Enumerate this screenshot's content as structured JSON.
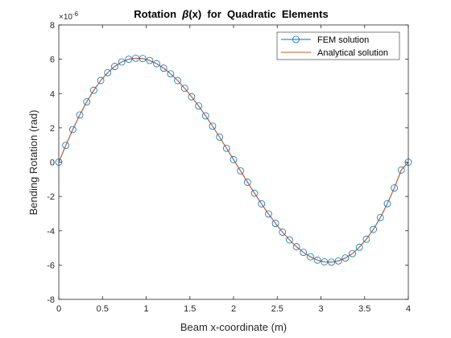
{
  "chart_data": {
    "type": "line",
    "title_parts": [
      "Rotation  ",
      "β",
      "(x)  for  Quadratic  Elements"
    ],
    "xlabel": "Beam x-coordinate (m)",
    "ylabel": "Bending Rotation (rad)",
    "xlim": [
      0,
      4
    ],
    "ylim": [
      -8,
      8
    ],
    "y_multiplier_label": "×10",
    "y_multiplier_exponent": "-6",
    "x_ticks": [
      0,
      0.5,
      1,
      1.5,
      2,
      2.5,
      3,
      3.5,
      4
    ],
    "x_tick_labels": [
      "0",
      "0.5",
      "1",
      "1.5",
      "2",
      "2.5",
      "3",
      "3.5",
      "4"
    ],
    "y_ticks": [
      -8,
      -6,
      -4,
      -2,
      0,
      2,
      4,
      6,
      8
    ],
    "y_tick_labels": [
      "-8",
      "-6",
      "-4",
      "-2",
      "0",
      "2",
      "4",
      "6",
      "8"
    ],
    "grid": false,
    "legend_position": "top-right",
    "series": [
      {
        "name": "FEM solution",
        "style": "markers-and-line",
        "color": "#0072BD",
        "x": [
          0.0,
          0.08,
          0.16,
          0.24,
          0.32,
          0.4,
          0.48,
          0.56,
          0.64,
          0.72,
          0.8,
          0.88,
          0.96,
          1.04,
          1.12,
          1.2,
          1.28,
          1.36,
          1.44,
          1.52,
          1.6,
          1.68,
          1.76,
          1.84,
          1.92,
          2.0,
          2.08,
          2.16,
          2.24,
          2.32,
          2.4,
          2.48,
          2.56,
          2.64,
          2.72,
          2.8,
          2.88,
          2.96,
          3.04,
          3.12,
          3.2,
          3.28,
          3.36,
          3.44,
          3.52,
          3.6,
          3.68,
          3.76,
          3.84,
          3.92,
          4.0
        ],
        "y": [
          0.0,
          0.98,
          1.9,
          2.75,
          3.52,
          4.19,
          4.76,
          5.22,
          5.58,
          5.84,
          6.0,
          6.06,
          6.04,
          5.93,
          5.74,
          5.48,
          5.15,
          4.76,
          4.31,
          3.81,
          3.28,
          2.7,
          2.1,
          1.46,
          0.81,
          0.15,
          -0.51,
          -1.17,
          -1.81,
          -2.43,
          -3.02,
          -3.57,
          -4.08,
          -4.53,
          -4.93,
          -5.26,
          -5.52,
          -5.71,
          -5.81,
          -5.83,
          -5.76,
          -5.59,
          -5.33,
          -4.96,
          -4.49,
          -3.92,
          -3.23,
          -2.42,
          -1.5,
          -0.46,
          0.0
        ]
      },
      {
        "name": "Analytical solution",
        "style": "line",
        "color": "#D95319",
        "x": [
          0.0,
          0.08,
          0.16,
          0.24,
          0.32,
          0.4,
          0.48,
          0.56,
          0.64,
          0.72,
          0.8,
          0.88,
          0.96,
          1.04,
          1.12,
          1.2,
          1.28,
          1.36,
          1.44,
          1.52,
          1.6,
          1.68,
          1.76,
          1.84,
          1.92,
          2.0,
          2.08,
          2.16,
          2.24,
          2.32,
          2.4,
          2.48,
          2.56,
          2.64,
          2.72,
          2.8,
          2.88,
          2.96,
          3.04,
          3.12,
          3.2,
          3.28,
          3.36,
          3.44,
          3.52,
          3.6,
          3.68,
          3.76,
          3.84,
          3.92,
          4.0
        ],
        "y": [
          0.0,
          0.98,
          1.9,
          2.75,
          3.52,
          4.19,
          4.76,
          5.22,
          5.58,
          5.84,
          6.0,
          6.06,
          6.04,
          5.93,
          5.74,
          5.48,
          5.15,
          4.76,
          4.31,
          3.81,
          3.28,
          2.7,
          2.1,
          1.46,
          0.81,
          0.15,
          -0.51,
          -1.17,
          -1.81,
          -2.43,
          -3.02,
          -3.57,
          -4.08,
          -4.53,
          -4.93,
          -5.26,
          -5.52,
          -5.71,
          -5.81,
          -5.83,
          -5.76,
          -5.59,
          -5.33,
          -4.96,
          -4.49,
          -3.92,
          -3.23,
          -2.42,
          -1.5,
          -0.46,
          0.0
        ]
      }
    ]
  }
}
